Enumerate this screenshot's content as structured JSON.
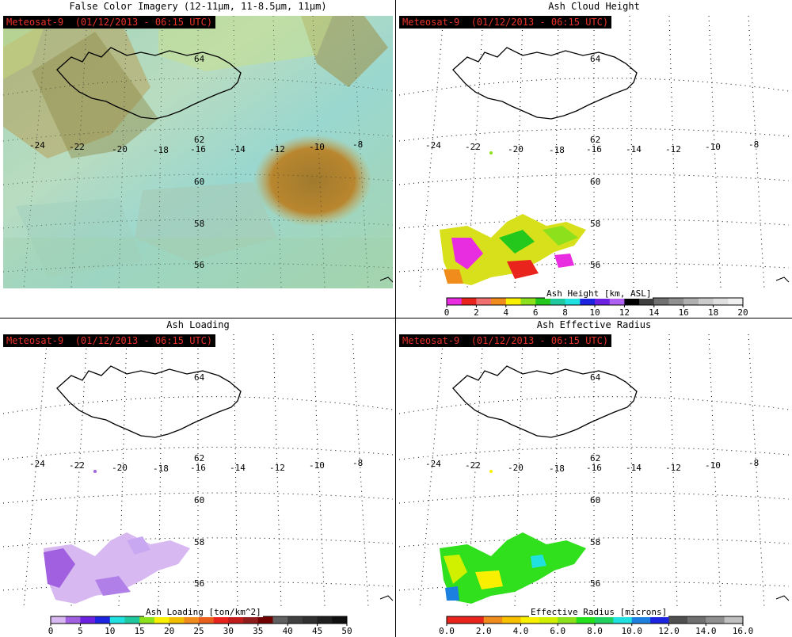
{
  "badge": "Meteosat-9  (01/12/2013 - 06:15 UTC)",
  "panels": {
    "false_color": {
      "title": "False Color Imagery (12-11μm, 11-8.5μm, 11μm)"
    },
    "height": {
      "title": "Ash Cloud Height",
      "colorbar": {
        "label": "Ash Height [km, ASL]",
        "ticks": [
          "0",
          "2",
          "4",
          "6",
          "8",
          "10",
          "12",
          "14",
          "16",
          "18",
          "20"
        ],
        "colors": [
          "#e82ce0",
          "#e8241c",
          "#f07070",
          "#f08c1c",
          "#f8f000",
          "#8ce01c",
          "#24c81c",
          "#20c8a0",
          "#20e0e0",
          "#1c24e0",
          "#6c20e0",
          "#b060f0",
          "#000000",
          "#404040",
          "#707070",
          "#909090",
          "#b0b0b0",
          "#cccccc",
          "#e0e0e0",
          "#f0f0f0"
        ]
      }
    },
    "loading": {
      "title": "Ash Loading",
      "colorbar": {
        "label": "Ash Loading [ton/km^2]",
        "ticks": [
          "0",
          "5",
          "10",
          "15",
          "20",
          "25",
          "30",
          "35",
          "40",
          "45",
          "50"
        ],
        "colors": [
          "#d8b8f0",
          "#a060e0",
          "#6c20e0",
          "#1c24e0",
          "#20e0e0",
          "#20c8a0",
          "#8ce01c",
          "#f8f000",
          "#f0c000",
          "#f08c1c",
          "#e8601c",
          "#e8241c",
          "#c01c1c",
          "#901c1c",
          "#700000",
          "#606060",
          "#404040",
          "#303030",
          "#202020",
          "#101010"
        ]
      }
    },
    "radius": {
      "title": "Ash Effective Radius",
      "colorbar": {
        "label": "Effective Radius [microns]",
        "ticks": [
          "0.0",
          "2.0",
          "4.0",
          "6.0",
          "8.0",
          "10.0",
          "12.0",
          "14.0",
          "16.0"
        ],
        "colors": [
          "#e8241c",
          "#e8241c",
          "#f08c1c",
          "#f8c000",
          "#f8f000",
          "#d0f000",
          "#8ce01c",
          "#24e01c",
          "#20d060",
          "#20e0e0",
          "#1c80e0",
          "#1c24e0",
          "#505050",
          "#707070",
          "#909090",
          "#c0c0c0"
        ]
      }
    }
  },
  "map": {
    "lon_labels": [
      "-24",
      "-22",
      "-20",
      "-18",
      "-16",
      "-14",
      "-12",
      "-10",
      "-8"
    ],
    "lat_labels": [
      "62",
      "60",
      "58",
      "56"
    ],
    "iceland_lat_label": "64"
  }
}
